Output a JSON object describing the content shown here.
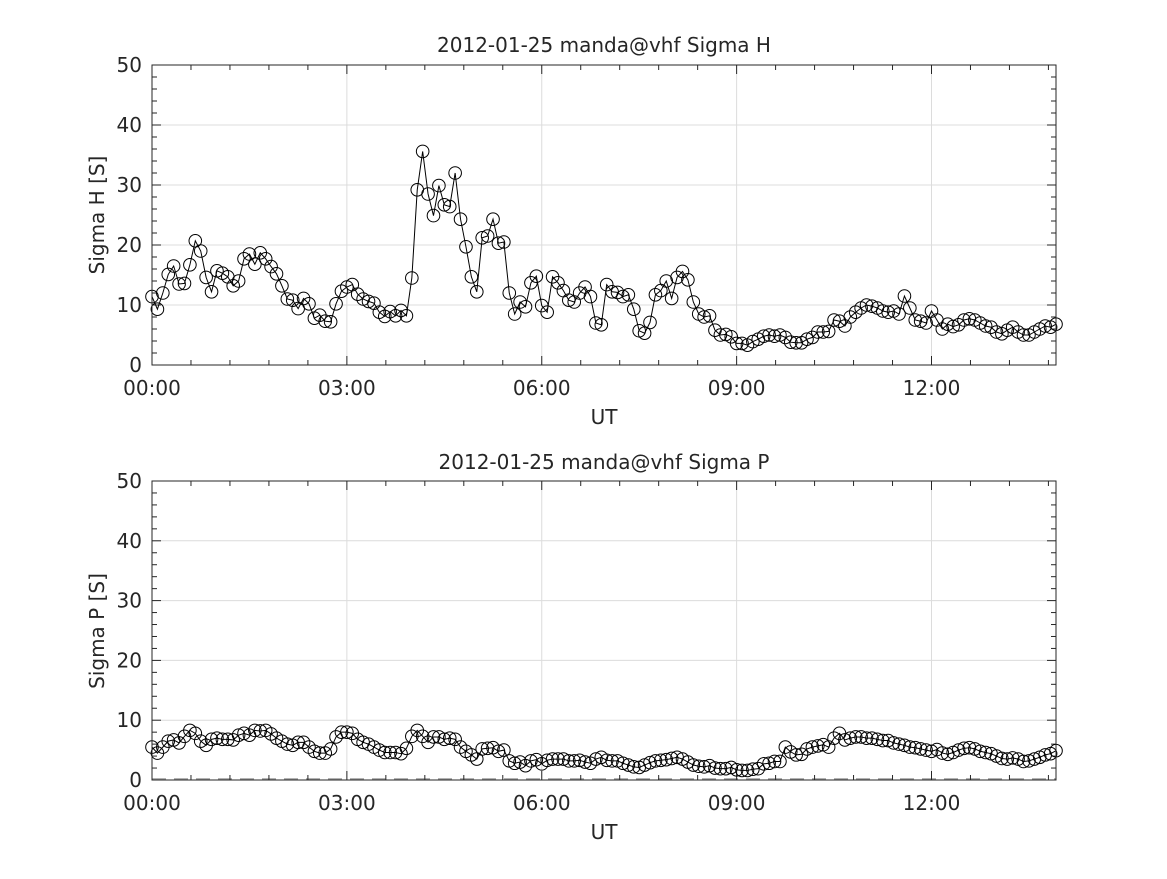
{
  "chart_data": [
    {
      "type": "line",
      "title": "2012-01-25  manda@vhf Sigma H",
      "xlabel": "UT",
      "ylabel": "Sigma H [S]",
      "x_unit": "minutes since 00:00 UT",
      "x_step_minutes": 5,
      "xlim": [
        0,
        835
      ],
      "ylim": [
        0,
        50
      ],
      "xticks": [
        0,
        180,
        360,
        540,
        720
      ],
      "xtick_labels": [
        "00:00",
        "03:00",
        "06:00",
        "09:00",
        "12:00"
      ],
      "yticks": [
        0,
        10,
        20,
        30,
        40,
        50
      ],
      "ytick_labels": [
        "0",
        "10",
        "20",
        "30",
        "40",
        "50"
      ],
      "grid": true,
      "marker": "open-circle",
      "values": [
        11.4,
        9.3,
        12,
        15.1,
        16.5,
        13.5,
        13.6,
        16.7,
        20.7,
        19,
        14.6,
        12.2,
        15.7,
        15.3,
        14.7,
        13.2,
        14,
        17.7,
        18.5,
        16.8,
        18.7,
        17.7,
        16.4,
        15.2,
        13.2,
        11,
        10.8,
        9.4,
        11.1,
        10.2,
        7.8,
        8.3,
        7.3,
        7.2,
        10.2,
        12.3,
        13,
        13.4,
        11.8,
        11,
        10.6,
        10.3,
        8.8,
        8.1,
        8.9,
        8.2,
        9.1,
        8.2,
        14.5,
        29.2,
        35.6,
        28.5,
        24.9,
        29.9,
        26.7,
        26.4,
        32,
        24.3,
        19.7,
        14.7,
        12.2,
        21.2,
        21.5,
        24.3,
        20.3,
        20.5,
        12,
        8.5,
        10.5,
        9.7,
        13.7,
        14.8,
        9.9,
        8.8,
        14.7,
        13.7,
        12.4,
        10.8,
        10.5,
        12,
        13,
        11.4,
        7,
        6.7,
        13.4,
        12.2,
        12.1,
        11.4,
        11.7,
        9.3,
        5.7,
        5.3,
        7.1,
        11.7,
        12.4,
        14,
        11.1,
        14.6,
        15.6,
        14.2,
        10.5,
        8.5,
        8,
        8.2,
        5.8,
        5,
        5.1,
        4.7,
        3.6,
        3.6,
        3.3,
        3.9,
        4.3,
        4.8,
        5,
        4.8,
        5,
        4.6,
        3.8,
        3.7,
        3.7,
        4.3,
        4.6,
        5.5,
        5.5,
        5.6,
        7.5,
        7.3,
        6.5,
        8,
        8.8,
        9.5,
        10,
        9.8,
        9.5,
        9,
        8.8,
        9,
        8.5,
        11.5,
        9.5,
        7.5,
        7.3,
        7,
        9,
        7.5,
        6,
        6.8,
        6.4,
        6.7,
        7.5,
        7.7,
        7.5,
        7,
        6.5,
        6.3,
        5.5,
        5.2,
        5.8,
        6.3,
        5.5,
        5,
        5,
        5.5,
        6,
        6.5,
        6.3,
        6.8
      ]
    },
    {
      "type": "line",
      "title": "2012-01-25  manda@vhf Sigma P",
      "xlabel": "UT",
      "ylabel": "Sigma P [S]",
      "x_unit": "minutes since 00:00 UT",
      "x_step_minutes": 5,
      "xlim": [
        0,
        835
      ],
      "ylim": [
        0,
        50
      ],
      "xticks": [
        0,
        180,
        360,
        540,
        720
      ],
      "xtick_labels": [
        "00:00",
        "03:00",
        "06:00",
        "09:00",
        "12:00"
      ],
      "yticks": [
        0,
        10,
        20,
        30,
        40,
        50
      ],
      "ytick_labels": [
        "0",
        "10",
        "20",
        "30",
        "40",
        "50"
      ],
      "grid": true,
      "marker": "open-circle",
      "values": [
        5.5,
        4.5,
        5.5,
        6.5,
        6.7,
        6.2,
        7.3,
        8.3,
        7.8,
        6.5,
        5.8,
        6.8,
        7,
        6.8,
        6.8,
        6.7,
        7.5,
        7.8,
        7.5,
        8.3,
        8.2,
        8.3,
        7.7,
        7,
        6.5,
        6,
        5.8,
        6.3,
        6.3,
        5.5,
        4.8,
        4.5,
        4.5,
        5.2,
        7.2,
        8,
        8,
        7.8,
        6.8,
        6.3,
        6,
        5.5,
        5,
        4.6,
        4.6,
        4.6,
        4.4,
        5.3,
        7.3,
        8.3,
        7.3,
        6.3,
        7.2,
        7.2,
        6.8,
        7,
        6.8,
        5.5,
        4.8,
        4.2,
        3.5,
        5.2,
        5.3,
        5.4,
        4.8,
        5,
        3.2,
        2.8,
        3,
        2.4,
        3.2,
        3.4,
        2.7,
        3.3,
        3.5,
        3.5,
        3.5,
        3.2,
        3.2,
        3.3,
        3,
        2.8,
        3.5,
        3.8,
        3.3,
        3.2,
        3.2,
        2.8,
        2.5,
        2.2,
        2.1,
        2.5,
        2.9,
        3.2,
        3.3,
        3.4,
        3.6,
        3.8,
        3.5,
        3,
        2.5,
        2.3,
        2.2,
        2.4,
        2,
        1.9,
        1.9,
        2.1,
        1.7,
        1.6,
        1.6,
        1.8,
        1.9,
        2.7,
        2.8,
        3.1,
        3.1,
        5.5,
        4.7,
        4.2,
        4.3,
        5.2,
        5.5,
        5.7,
        5.9,
        5.5,
        7,
        7.8,
        6.7,
        7,
        7.2,
        7.2,
        7,
        7,
        6.8,
        6.6,
        6.6,
        6.2,
        6,
        5.8,
        5.5,
        5.4,
        5.2,
        5,
        4.8,
        5.1,
        4.5,
        4.3,
        4.6,
        5,
        5.3,
        5.4,
        5.2,
        4.8,
        4.6,
        4.4,
        4,
        3.6,
        3.5,
        3.7,
        3.5,
        3.1,
        3.2,
        3.5,
        3.8,
        4.2,
        4.4,
        4.9
      ]
    }
  ]
}
